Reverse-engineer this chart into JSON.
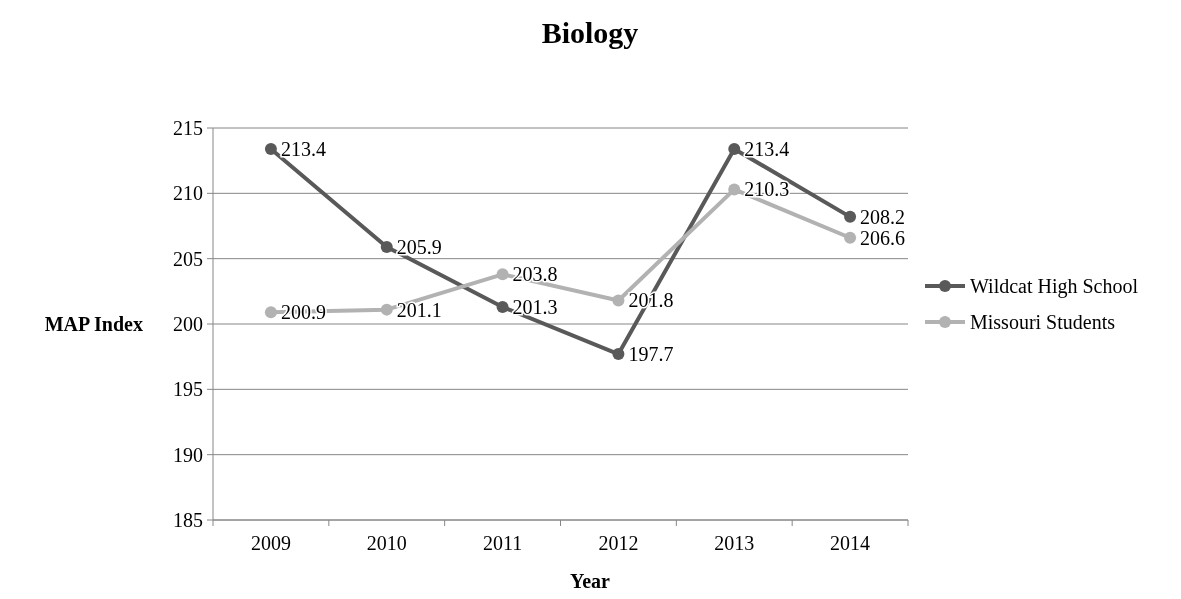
{
  "chart_data": {
    "type": "line",
    "title": "Biology",
    "xlabel": "Year",
    "ylabel": "MAP Index",
    "categories": [
      "2009",
      "2010",
      "2011",
      "2012",
      "2013",
      "2014"
    ],
    "series": [
      {
        "name": "Wildcat High School",
        "color": "#595959",
        "values": [
          213.4,
          205.9,
          201.3,
          197.7,
          213.4,
          208.2
        ]
      },
      {
        "name": "Missouri Students",
        "color": "#b2b2b2",
        "values": [
          200.9,
          201.1,
          203.8,
          201.8,
          210.3,
          206.6
        ]
      }
    ],
    "ylim": [
      185,
      215
    ],
    "yticks": [
      185,
      190,
      195,
      200,
      205,
      210,
      215
    ],
    "grid": "y",
    "legend": "right",
    "marker": "circle",
    "line_style": "solid",
    "data_labels": true
  }
}
